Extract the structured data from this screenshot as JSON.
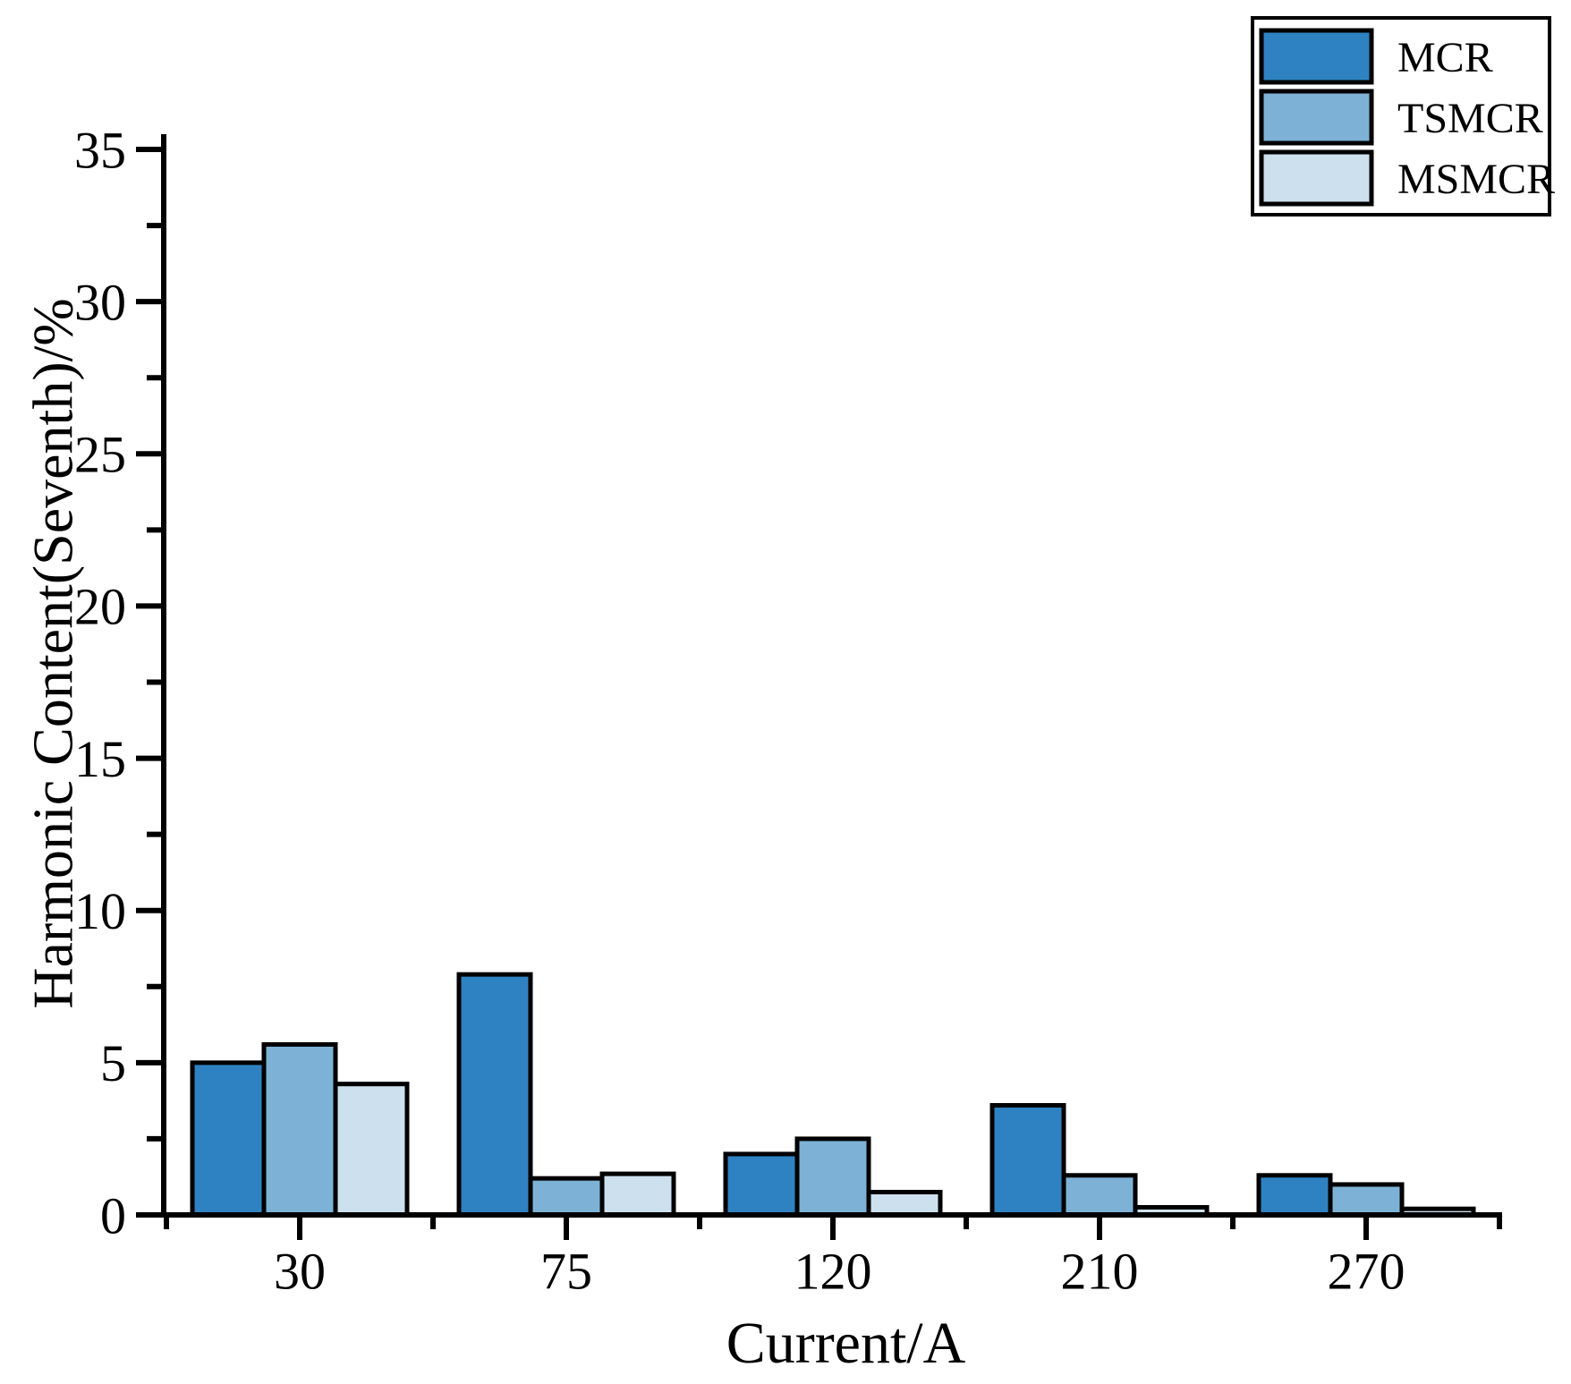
{
  "figure": {
    "background": "#ffffff",
    "axis_color": "#000000",
    "bar_edge_color": "#000000"
  },
  "chart_data": {
    "type": "bar",
    "title": "",
    "xlabel": "Current/A",
    "ylabel": "Harmonic Content(Seventh)/%",
    "categories": [
      "30",
      "75",
      "120",
      "210",
      "270"
    ],
    "series": [
      {
        "name": "MCR",
        "color": "#2F82C1",
        "values": [
          5.0,
          7.9,
          2.0,
          3.6,
          1.3
        ]
      },
      {
        "name": "TSMCR",
        "color": "#7DB2D6",
        "values": [
          5.6,
          1.2,
          2.5,
          1.3,
          1.0
        ]
      },
      {
        "name": "MSMCR",
        "color": "#CDE0ED",
        "values": [
          4.3,
          1.35,
          0.75,
          0.25,
          0.2
        ]
      }
    ],
    "ylim": [
      0,
      35
    ],
    "yticks": [
      0,
      5,
      10,
      15,
      20,
      25,
      30,
      35
    ],
    "ytick_step": 5,
    "yminor_step": 2.5,
    "xminor_at_group_boundaries": true,
    "grid": false,
    "legend_position": "top-right",
    "legend_labels": [
      "MCR",
      "TSMCR",
      "MSMCR"
    ]
  }
}
